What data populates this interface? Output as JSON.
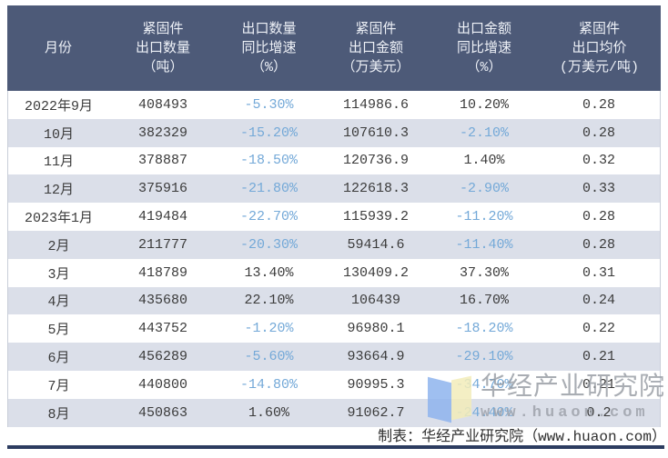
{
  "colors": {
    "header_bg": "#4d5a78",
    "header_text": "#eef1f7",
    "row_bg": "#ffffff",
    "row_alt_bg": "#dbdfe9",
    "text": "#3b3b3b",
    "negative_text": "#74a9d8",
    "table_border": "#c9ced9",
    "bottom_rule": "#2c3c60",
    "logo_blue": "#8fb4ee",
    "logo_yellow": "#f3edba"
  },
  "table": {
    "columns": [
      {
        "id": "month",
        "lines": [
          "月份"
        ]
      },
      {
        "id": "export-qty",
        "lines": [
          "紧固件",
          "出口数量",
          "（吨）"
        ]
      },
      {
        "id": "qty-yoy",
        "lines": [
          "出口数量",
          "同比增速",
          "（%）"
        ]
      },
      {
        "id": "export-value",
        "lines": [
          "紧固件",
          "出口金额",
          "（万美元）"
        ]
      },
      {
        "id": "value-yoy",
        "lines": [
          "出口金额",
          "同比增速",
          "（%）"
        ]
      },
      {
        "id": "avg-price",
        "lines": [
          "紧固件",
          "出口均价",
          "(万美元/吨)"
        ]
      }
    ],
    "rows": [
      [
        "2022年9月",
        "408493",
        "-5.30%",
        "114986.6",
        "10.20%",
        "0.28"
      ],
      [
        "10月",
        "382329",
        "-15.20%",
        "107610.3",
        "-2.10%",
        "0.28"
      ],
      [
        "11月",
        "378887",
        "-18.50%",
        "120736.9",
        "1.40%",
        "0.32"
      ],
      [
        "12月",
        "375916",
        "-21.80%",
        "122618.3",
        "-2.90%",
        "0.33"
      ],
      [
        "2023年1月",
        "419484",
        "-22.70%",
        "115939.2",
        "-11.20%",
        "0.28"
      ],
      [
        "2月",
        "211777",
        "-20.30%",
        "59414.6",
        "-11.40%",
        "0.28"
      ],
      [
        "3月",
        "418789",
        "13.40%",
        "130409.2",
        "37.30%",
        "0.31"
      ],
      [
        "4月",
        "435680",
        "22.10%",
        "106439",
        "16.70%",
        "0.24"
      ],
      [
        "5月",
        "443752",
        "-1.20%",
        "96980.1",
        "-18.20%",
        "0.22"
      ],
      [
        "6月",
        "456289",
        "-5.60%",
        "93664.9",
        "-29.10%",
        "0.21"
      ],
      [
        "7月",
        "440800",
        "-14.80%",
        "90995.3",
        "-34.70%",
        "0.21"
      ],
      [
        "8月",
        "450863",
        "1.60%",
        "91062.7",
        "-24.40%",
        "0.2"
      ]
    ]
  },
  "watermark": {
    "name": "华经产业研究院",
    "url": "www.huaon.com"
  },
  "footer": {
    "credit": "制表：华经产业研究院（www.huaon.com）"
  },
  "chart_data": {
    "type": "table",
    "columns": [
      "月份",
      "紧固件出口数量（吨）",
      "出口数量同比增速（%）",
      "紧固件出口金额（万美元）",
      "出口金额同比增速（%）",
      "紧固件出口均价(万美元/吨)"
    ],
    "rows": [
      [
        "2022年9月",
        408493,
        -5.3,
        114986.6,
        10.2,
        0.28
      ],
      [
        "10月",
        382329,
        -15.2,
        107610.3,
        -2.1,
        0.28
      ],
      [
        "11月",
        378887,
        -18.5,
        120736.9,
        1.4,
        0.32
      ],
      [
        "12月",
        375916,
        -21.8,
        122618.3,
        -2.9,
        0.33
      ],
      [
        "2023年1月",
        419484,
        -22.7,
        115939.2,
        -11.2,
        0.28
      ],
      [
        "2月",
        211777,
        -20.3,
        59414.6,
        -11.4,
        0.28
      ],
      [
        "3月",
        418789,
        13.4,
        130409.2,
        37.3,
        0.31
      ],
      [
        "4月",
        435680,
        22.1,
        106439,
        16.7,
        0.24
      ],
      [
        "5月",
        443752,
        -1.2,
        96980.1,
        -18.2,
        0.22
      ],
      [
        "6月",
        456289,
        -5.6,
        93664.9,
        -29.1,
        0.21
      ],
      [
        "7月",
        440800,
        -14.8,
        90995.3,
        -34.7,
        0.21
      ],
      [
        "8月",
        450863,
        1.6,
        91062.7,
        -24.4,
        0.2
      ]
    ],
    "legend_position": "none",
    "grid": false
  }
}
